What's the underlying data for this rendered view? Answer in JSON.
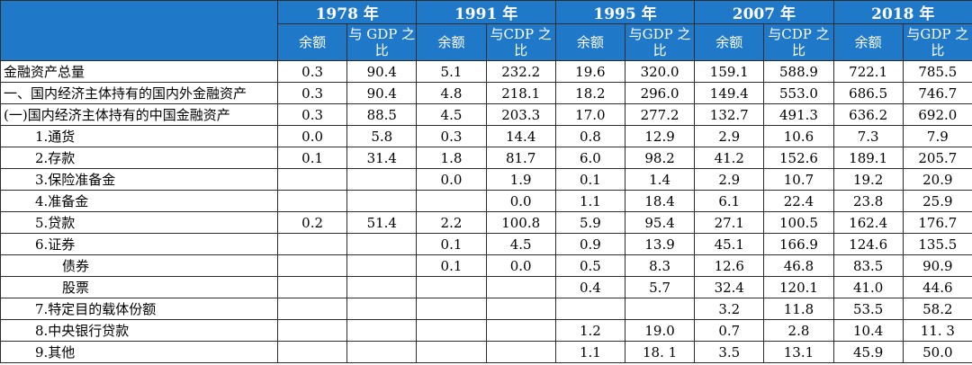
{
  "years": [
    "1978 年",
    "1991 年",
    "1995 年",
    "2007 年",
    "2018 年"
  ],
  "subheaders": [
    [
      "余额",
      "与 GDP 之比"
    ],
    [
      "余额",
      "与CDP 之比"
    ],
    [
      "余额",
      "与GDP 之比"
    ],
    [
      "余额",
      "与CDP 之比"
    ],
    [
      "余额",
      "与GDP 之比"
    ]
  ],
  "rows": [
    {
      "label": "金融资产总量",
      "indent": 0,
      "values": [
        "0.3",
        "90.4",
        "5.1",
        "232.2",
        "19.6",
        "320.0",
        "159.1",
        "588.9",
        "722.1",
        "785.5"
      ]
    },
    {
      "label": "一、国内经济主体持有的国内外金融资产",
      "indent": 0,
      "values": [
        "0.3",
        "90.4",
        "4.8",
        "218.1",
        "18.2",
        "296.0",
        "149.4",
        "553.0",
        "686.5",
        "746.7"
      ]
    },
    {
      "label": "(一)国内经济主体持有的中国金融资产",
      "indent": 0,
      "values": [
        "0.3",
        "88.5",
        "4.5",
        "203.3",
        "17.0",
        "277.2",
        "132.7",
        "491.3",
        "636.2",
        "692.0"
      ]
    },
    {
      "label": "1.通货",
      "indent": 1,
      "values": [
        "0.0",
        "5.8",
        "0.3",
        "14.4",
        "0.8",
        "12.9",
        "2.9",
        "10.6",
        "7.3",
        "7.9"
      ]
    },
    {
      "label": "2.存款",
      "indent": 1,
      "values": [
        "0.1",
        "31.4",
        "1.8",
        "81.7",
        "6.0",
        "98.2",
        "41.2",
        "152.6",
        "189.1",
        "205.7"
      ]
    },
    {
      "label": "3.保险准备金",
      "indent": 1,
      "values": [
        "",
        "",
        "0.0",
        "1.9",
        "0.1",
        "1.4",
        "2.9",
        "10.7",
        "19.2",
        "20.9"
      ]
    },
    {
      "label": "4.准备金",
      "indent": 1,
      "values": [
        "",
        "",
        "",
        "0.0",
        "1.1",
        "18.4",
        "6.1",
        "22.4",
        "23.8",
        "25.9"
      ]
    },
    {
      "label": "5.贷款",
      "indent": 1,
      "values": [
        "0.2",
        "51.4",
        "2.2",
        "100.8",
        "5.9",
        "95.4",
        "27.1",
        "100.5",
        "162.4",
        "176.7"
      ]
    },
    {
      "label": "6.证券",
      "indent": 1,
      "values": [
        "",
        "",
        "0.1",
        "4.5",
        "0.9",
        "13.9",
        "45.1",
        "166.9",
        "124.6",
        "135.5"
      ]
    },
    {
      "label": "债券",
      "indent": 2,
      "values": [
        "",
        "",
        "0.1",
        "0.0",
        "0.5",
        "8.3",
        "12.6",
        "46.8",
        "83.5",
        "90.9"
      ]
    },
    {
      "label": "股票",
      "indent": 2,
      "values": [
        "",
        "",
        "",
        "",
        "0.4",
        "5.7",
        "32.4",
        "120.1",
        "41.0",
        "44.6"
      ]
    },
    {
      "label": "7.特定目的载体份额",
      "indent": 1,
      "values": [
        "",
        "",
        "",
        "",
        "",
        "",
        "3.2",
        "11.8",
        "53.5",
        "58.2"
      ]
    },
    {
      "label": "8.中央银行贷款",
      "indent": 1,
      "values": [
        "",
        "",
        "",
        "",
        "1.2",
        "19.0",
        "0.7",
        "2.8",
        "10.4",
        "11. 3"
      ]
    },
    {
      "label": "9.其他",
      "indent": 1,
      "values": [
        "",
        "",
        "",
        "",
        "1.1",
        "18. 1",
        "3.5",
        "13.1",
        "45.9",
        "50.0"
      ]
    }
  ]
}
